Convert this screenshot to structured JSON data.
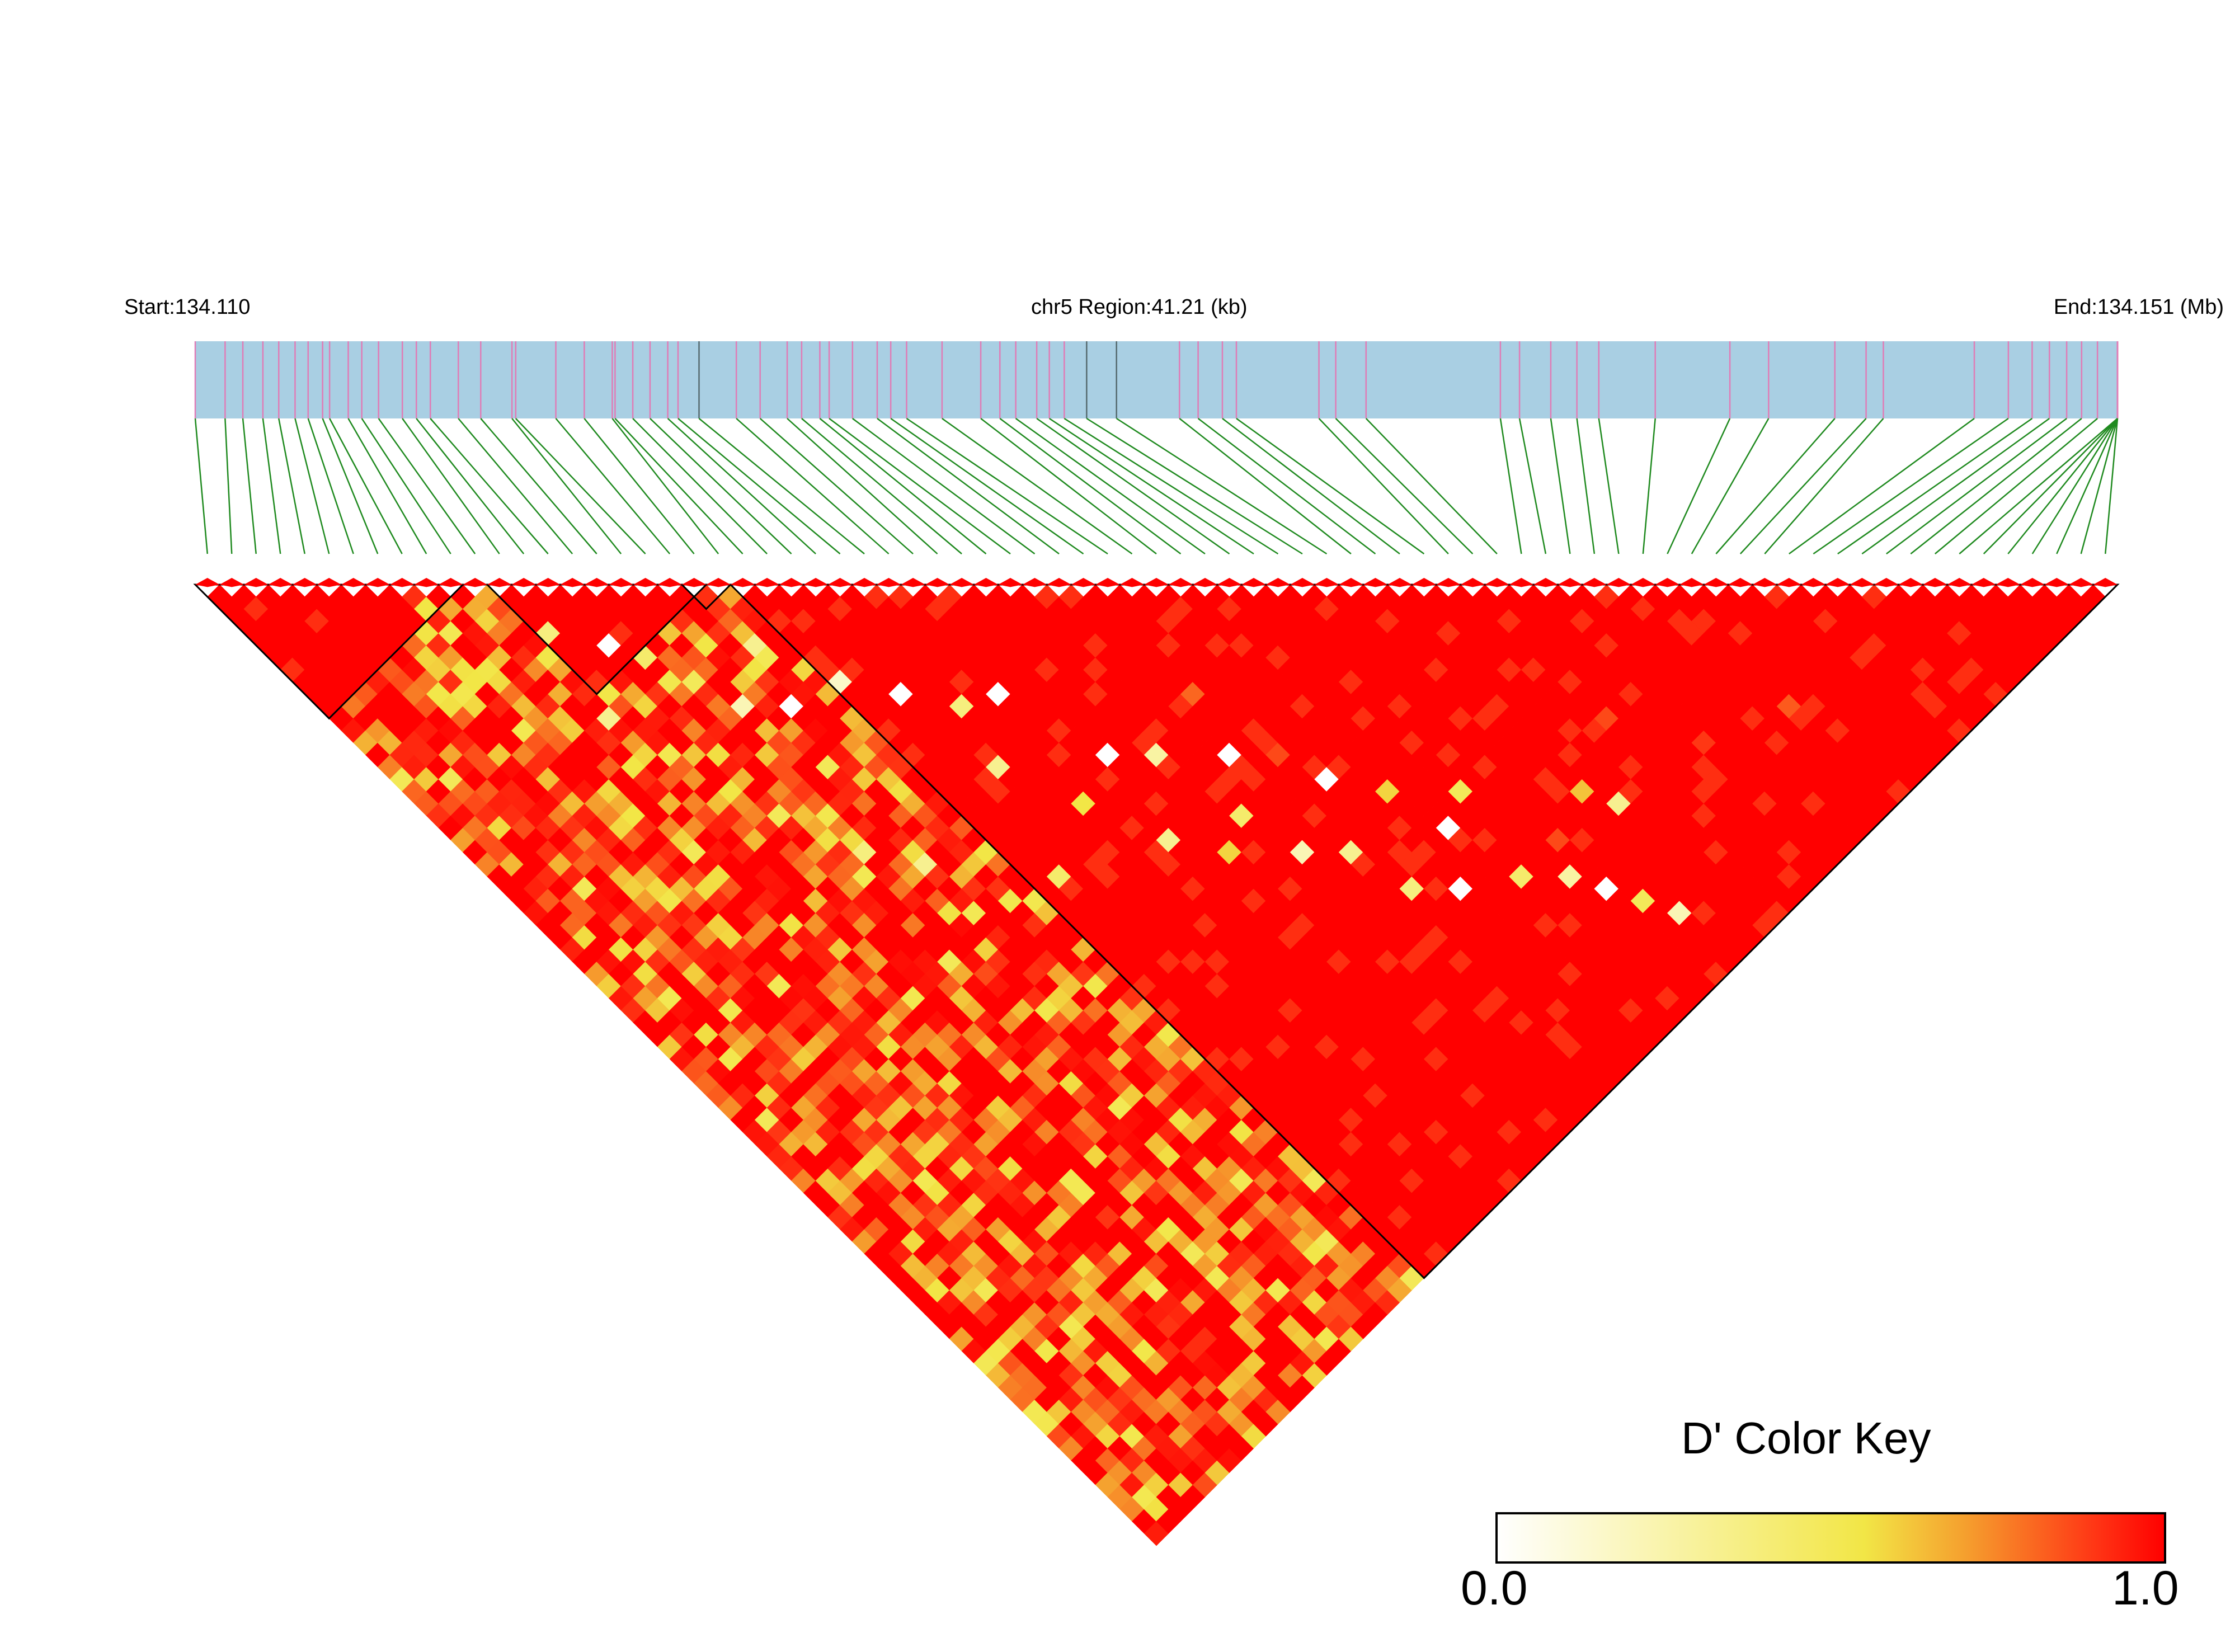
{
  "header": {
    "start_label": "Start:134.110",
    "region_label": "chr5 Region:41.21 (kb)",
    "end_label": "End:134.151 (Mb)"
  },
  "color_key": {
    "title": "D' Color Key",
    "min_label": "0.0",
    "max_label": "1.0",
    "gradient_colors": [
      "#ffffff",
      "#f4e44a",
      "#f58a2a",
      "#ff1a0a",
      "#ff0000"
    ]
  },
  "chart_data": {
    "type": "heatmap",
    "description_kind": "linkage-disequilibrium triangle",
    "chromosome": "chr5",
    "region_start_mb": 134.11,
    "region_end_mb": 134.151,
    "region_length_kb": 41.21,
    "snp_count": 79,
    "value_name": "D'",
    "value_range": [
      0.0,
      1.0
    ],
    "snp_positions_kb": [
      0.0,
      0.64,
      1.02,
      1.45,
      1.79,
      2.14,
      2.42,
      2.73,
      2.88,
      3.28,
      3.57,
      3.93,
      4.44,
      4.74,
      5.04,
      5.64,
      6.12,
      6.79,
      6.87,
      7.73,
      8.34,
      8.94,
      9.0,
      9.38,
      9.75,
      10.13,
      10.35,
      10.8,
      11.6,
      12.11,
      12.69,
      13.0,
      13.39,
      13.59,
      14.09,
      14.62,
      14.91,
      15.25,
      16.01,
      16.84,
      17.25,
      17.59,
      18.04,
      18.31,
      18.63,
      19.11,
      19.75,
      21.1,
      21.5,
      22.02,
      22.32,
      24.09,
      24.45,
      25.1,
      27.98,
      28.39,
      29.06,
      29.62,
      30.09,
      31.3,
      32.9,
      33.73,
      35.15,
      35.82,
      36.19,
      38.14,
      38.87,
      39.38,
      39.75,
      40.12,
      40.44,
      40.78,
      41.21,
      41.21,
      41.21,
      41.21,
      41.21,
      41.21,
      41.21
    ],
    "default_value": 0.85,
    "row_patterns": [
      {
        "from": 0,
        "to": 78,
        "band": "near-diagonal",
        "value": 1.0
      }
    ],
    "ld_blocks": [
      {
        "block": 1,
        "snp_start": 1,
        "snp_end": 11
      },
      {
        "block": 2,
        "snp_start": 13,
        "snp_end": 21
      },
      {
        "block": 3,
        "snp_start": 21,
        "snp_end": 22
      },
      {
        "block": 4,
        "snp_start": 23,
        "snp_end": 79
      }
    ],
    "low_value_cells": [
      [
        12,
        16,
        0.35
      ],
      [
        14,
        19,
        0.0
      ],
      [
        15,
        21,
        0.4
      ],
      [
        18,
        23,
        0.5
      ],
      [
        20,
        25,
        0.3
      ],
      [
        16,
        24,
        0.45
      ],
      [
        17,
        27,
        0.2
      ],
      [
        19,
        29,
        0.0
      ],
      [
        22,
        30,
        0.15
      ],
      [
        24,
        33,
        0.0
      ],
      [
        26,
        36,
        0.35
      ],
      [
        28,
        37,
        0.0
      ],
      [
        20,
        34,
        0.6
      ],
      [
        25,
        40,
        0.3
      ],
      [
        30,
        44,
        0.0
      ],
      [
        32,
        46,
        0.25
      ],
      [
        27,
        45,
        0.5
      ],
      [
        35,
        49,
        0.0
      ],
      [
        33,
        52,
        0.4
      ],
      [
        38,
        54,
        0.0
      ],
      [
        36,
        58,
        0.3
      ],
      [
        40,
        57,
        0.55
      ],
      [
        41,
        61,
        0.0
      ],
      [
        43,
        60,
        0.45
      ],
      [
        29,
        50,
        0.3
      ],
      [
        31,
        53,
        0.55
      ],
      [
        34,
        56,
        0.2
      ],
      [
        37,
        62,
        0.35
      ],
      [
        39,
        64,
        0.0
      ],
      [
        42,
        66,
        0.4
      ],
      [
        44,
        68,
        0.25
      ],
      [
        45,
        70,
        0.0
      ],
      [
        46,
        72,
        0.45
      ],
      [
        47,
        74,
        0.2
      ],
      [
        48,
        65,
        0.6
      ],
      [
        49,
        67,
        0.3
      ],
      [
        13,
        30,
        0.5
      ],
      [
        14,
        33,
        0.45
      ],
      [
        16,
        38,
        0.35
      ],
      [
        18,
        41,
        0.3
      ],
      [
        21,
        43,
        0.5
      ],
      [
        23,
        47,
        0.4
      ],
      [
        11,
        22,
        0.3
      ],
      [
        10,
        25,
        0.5
      ],
      [
        9,
        20,
        0.6
      ]
    ],
    "block1_low_cells": [
      [
        8,
        10,
        0.5
      ]
    ],
    "block4_low_cells": [
      [
        36,
        45,
        0.8
      ],
      [
        37,
        51,
        0.85
      ],
      [
        43,
        56,
        0.9
      ],
      [
        52,
        63,
        0.85
      ],
      [
        55,
        68,
        0.88
      ],
      [
        60,
        70,
        0.82
      ],
      [
        45,
        66,
        0.85
      ]
    ]
  }
}
